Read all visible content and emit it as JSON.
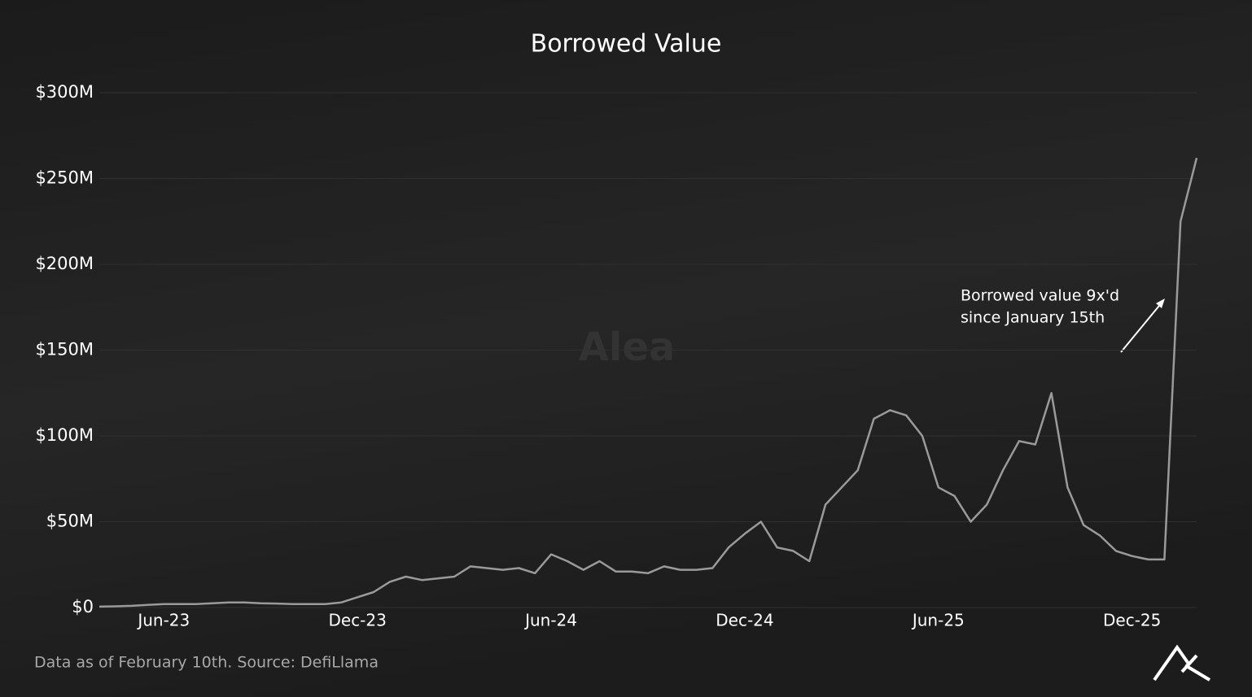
{
  "chart_data": {
    "type": "line",
    "title": "Borrowed Value",
    "watermark": "Alea",
    "source": "Data as of February 10th. Source: DefiLlama",
    "annotation": [
      "Borrowed value 9x'd",
      "since January 15th"
    ],
    "categories": [
      null,
      null,
      null,
      null,
      "Jun-23",
      null,
      null,
      null,
      null,
      null,
      null,
      null,
      null,
      null,
      null,
      null,
      "Dec-23",
      null,
      null,
      null,
      null,
      null,
      null,
      null,
      null,
      null,
      null,
      null,
      "Jun-24",
      null,
      null,
      null,
      null,
      null,
      null,
      null,
      null,
      null,
      null,
      null,
      "Dec-24",
      null,
      null,
      null,
      null,
      null,
      null,
      null,
      null,
      null,
      null,
      null,
      "Jun-25",
      null,
      null,
      null,
      null,
      null,
      null,
      null,
      null,
      null,
      null,
      null,
      "Dec-25",
      null,
      null,
      null,
      null
    ],
    "series": [
      {
        "name": "Borrowed Value",
        "color": "#9a9a9a",
        "values": [
          0.5,
          0.7,
          1,
          1.5,
          2,
          2,
          2,
          2.5,
          3,
          3,
          2.5,
          2.3,
          2,
          2,
          2,
          3,
          6,
          9,
          15,
          18,
          16,
          17,
          18,
          24,
          23,
          22,
          23,
          20,
          31,
          27,
          22,
          27,
          21,
          21,
          20,
          24,
          22,
          22,
          23,
          35,
          43,
          50,
          35,
          33,
          27,
          60,
          70,
          80,
          110,
          115,
          112,
          100,
          70,
          65,
          50,
          60,
          80,
          97,
          95,
          125,
          70,
          48,
          42,
          33,
          30,
          28,
          28,
          225,
          262
        ]
      }
    ],
    "ylim": [
      0,
      300
    ],
    "yticks": [
      {
        "value": 0,
        "label": "$0"
      },
      {
        "value": 50,
        "label": "$50M"
      },
      {
        "value": 100,
        "label": "$100M"
      },
      {
        "value": 150,
        "label": "$150M"
      },
      {
        "value": 200,
        "label": "$200M"
      },
      {
        "value": 250,
        "label": "$250M"
      },
      {
        "value": 300,
        "label": "$300M"
      }
    ],
    "grid": true
  }
}
